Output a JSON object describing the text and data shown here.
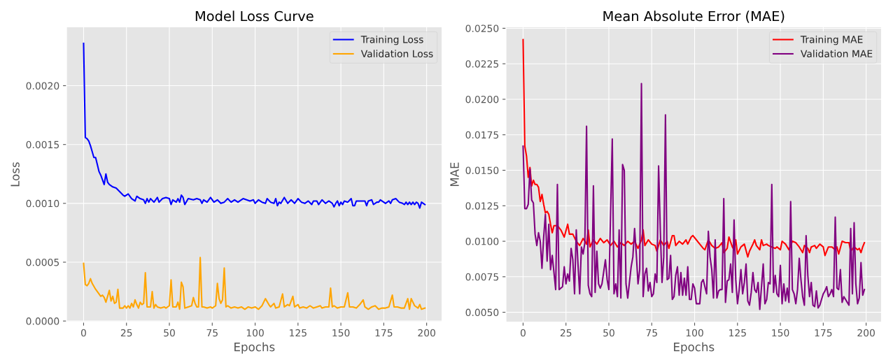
{
  "chart_data": [
    {
      "type": "line",
      "title": "Model Loss Curve",
      "xlabel": "Epochs",
      "ylabel": "Loss",
      "xlim": [
        -10,
        209
      ],
      "xticks": [
        0,
        25,
        50,
        75,
        100,
        125,
        150,
        175,
        200
      ],
      "ylim": [
        -1e-05,
        0.0025
      ],
      "yticks": [
        {
          "value": 0,
          "label": "0.0000"
        },
        {
          "value": 0.0005,
          "label": "0.0005"
        },
        {
          "value": 0.001,
          "label": "0.0010"
        },
        {
          "value": 0.0015,
          "label": "0.0015"
        },
        {
          "value": 0.002,
          "label": "0.0020"
        }
      ],
      "grid": true,
      "legend": "top right",
      "series": [
        {
          "name": "Training Loss",
          "color": "#0000ff",
          "x": [
            0,
            1,
            2,
            3,
            4,
            5,
            6,
            7,
            8,
            9,
            10,
            11,
            12,
            13,
            14,
            15,
            17,
            19,
            21,
            23,
            24,
            26,
            28,
            30,
            31,
            33,
            35,
            36,
            37,
            38,
            39,
            41,
            42,
            43,
            44,
            46,
            48,
            50,
            51,
            52,
            54,
            55,
            56,
            57,
            58,
            59,
            61,
            64,
            66,
            68,
            69,
            70,
            72,
            74,
            76,
            78,
            80,
            82,
            84,
            86,
            88,
            90,
            91,
            93,
            95,
            97,
            99,
            100,
            102,
            104,
            106,
            107,
            109,
            111,
            112,
            113,
            114,
            115,
            117,
            119,
            121,
            123,
            125,
            127,
            129,
            131,
            133,
            134,
            136,
            137,
            139,
            141,
            143,
            145,
            146,
            147,
            148,
            149,
            150,
            151,
            152,
            154,
            156,
            157,
            158,
            159,
            161,
            164,
            165,
            166,
            168,
            169,
            171,
            172,
            173,
            175,
            176,
            178,
            179,
            180,
            182,
            184,
            186,
            187,
            188,
            189,
            190,
            191,
            192,
            193,
            194,
            195,
            196,
            197,
            198,
            199
          ],
          "values": [
            0.00236,
            0.00156,
            0.00155,
            0.00153,
            0.00149,
            0.00144,
            0.00139,
            0.00139,
            0.00133,
            0.00127,
            0.00124,
            0.0012,
            0.00116,
            0.00125,
            0.00118,
            0.00116,
            0.00114,
            0.00113,
            0.0011,
            0.00107,
            0.00106,
            0.00108,
            0.00104,
            0.00102,
            0.00106,
            0.00104,
            0.00103,
            0.001,
            0.00104,
            0.00101,
            0.00104,
            0.00101,
            0.00103,
            0.00105,
            0.00101,
            0.00104,
            0.00105,
            0.00104,
            0.00099,
            0.00103,
            0.00101,
            0.00104,
            0.00101,
            0.00107,
            0.00105,
            0.00099,
            0.00104,
            0.00103,
            0.00104,
            0.00103,
            0.001,
            0.00103,
            0.00101,
            0.00105,
            0.00101,
            0.00103,
            0.001,
            0.00101,
            0.00104,
            0.00101,
            0.00103,
            0.00101,
            0.00102,
            0.00104,
            0.00103,
            0.00102,
            0.00103,
            0.001,
            0.00103,
            0.00101,
            0.001,
            0.00104,
            0.00101,
            0.001,
            0.00104,
            0.00098,
            0.00101,
            0.001,
            0.00105,
            0.001,
            0.00103,
            0.001,
            0.00104,
            0.00101,
            0.001,
            0.00102,
            0.00099,
            0.00102,
            0.00102,
            0.00099,
            0.00103,
            0.001,
            0.00102,
            0.001,
            0.00097,
            0.001,
            0.00102,
            0.00098,
            0.00101,
            0.00099,
            0.00102,
            0.00101,
            0.00104,
            0.00098,
            0.00098,
            0.00102,
            0.00102,
            0.00102,
            0.00098,
            0.00102,
            0.00103,
            0.00099,
            0.00101,
            0.00101,
            0.00103,
            0.00101,
            0.001,
            0.00102,
            0.001,
            0.00103,
            0.00104,
            0.00101,
            0.001,
            0.00099,
            0.00101,
            0.00099,
            0.00101,
            0.00099,
            0.00101,
            0.00099,
            0.00101,
            0.001,
            0.00096,
            0.00101,
            0.001,
            0.00099
          ]
        },
        {
          "name": "Validation Loss",
          "color": "#ffa500",
          "x": [
            0,
            1,
            2,
            3,
            4,
            5,
            7,
            9,
            10,
            11,
            12,
            13,
            15,
            16,
            17,
            18,
            19,
            20,
            21,
            23,
            24,
            25,
            26,
            27,
            28,
            29,
            30,
            31,
            32,
            33,
            34,
            35,
            36,
            37,
            39,
            40,
            41,
            42,
            43,
            45,
            47,
            48,
            50,
            51,
            52,
            54,
            55,
            56,
            57,
            58,
            59,
            61,
            63,
            64,
            65,
            66,
            67,
            68,
            69,
            70,
            72,
            74,
            75,
            77,
            78,
            79,
            80,
            81,
            82,
            83,
            84,
            86,
            88,
            90,
            92,
            94,
            96,
            98,
            100,
            102,
            104,
            106,
            108,
            109,
            111,
            112,
            114,
            116,
            117,
            119,
            120,
            122,
            123,
            125,
            126,
            128,
            130,
            132,
            134,
            136,
            138,
            139,
            141,
            143,
            144,
            145,
            146,
            148,
            150,
            152,
            154,
            155,
            157,
            159,
            161,
            163,
            164,
            166,
            168,
            170,
            172,
            174,
            176,
            178,
            180,
            181,
            183,
            185,
            187,
            189,
            190,
            191,
            193,
            195,
            196,
            197,
            199
          ],
          "values": [
            0.00049,
            0.00031,
            0.0003,
            0.00032,
            0.00036,
            0.00032,
            0.00027,
            0.00023,
            0.00021,
            0.00022,
            0.0002,
            0.00016,
            0.00026,
            0.00017,
            0.00021,
            0.00015,
            0.00016,
            0.00027,
            0.00011,
            0.00011,
            0.00013,
            0.00011,
            0.00013,
            0.00011,
            0.00015,
            0.00012,
            0.00018,
            0.00014,
            0.00011,
            0.00016,
            0.00014,
            0.00015,
            0.00041,
            0.00012,
            0.00012,
            0.00025,
            0.00011,
            0.00014,
            0.00012,
            0.00011,
            0.00012,
            0.00011,
            0.00013,
            0.00035,
            0.00012,
            0.00012,
            0.00016,
            0.0001,
            0.00033,
            0.00029,
            0.00011,
            0.00012,
            0.00013,
            0.0002,
            0.00015,
            0.00012,
            0.00012,
            0.00054,
            0.00012,
            0.00012,
            0.00011,
            0.00012,
            0.00011,
            0.00013,
            0.00032,
            0.00019,
            0.00015,
            0.00018,
            0.00045,
            0.00012,
            0.00013,
            0.00011,
            0.00012,
            0.00011,
            0.00012,
            0.0001,
            0.00012,
            0.00011,
            0.00012,
            0.0001,
            0.00013,
            0.00019,
            0.00014,
            0.00012,
            0.00015,
            0.00011,
            0.00012,
            0.00023,
            0.00012,
            0.00014,
            0.00013,
            0.00021,
            0.00012,
            0.00014,
            0.00011,
            0.00012,
            0.00011,
            0.00013,
            0.00011,
            0.00012,
            0.00013,
            0.00011,
            0.00012,
            0.00012,
            0.00028,
            0.00012,
            0.00013,
            0.00011,
            0.00012,
            0.00012,
            0.00024,
            0.00012,
            0.00012,
            0.00011,
            0.00014,
            0.00018,
            0.00012,
            0.0001,
            0.00012,
            0.00013,
            0.0001,
            0.00011,
            0.00011,
            0.00012,
            0.00022,
            0.00012,
            0.00012,
            0.00011,
            0.00011,
            0.00019,
            0.0001,
            0.00019,
            0.00013,
            0.00011,
            0.00014,
            0.0001,
            0.00011
          ]
        }
      ]
    },
    {
      "type": "line",
      "title": "Mean Absolute Error (MAE)",
      "xlabel": "Epochs",
      "ylabel": "MAE",
      "xlim": [
        -10,
        209
      ],
      "xticks": [
        0,
        25,
        50,
        75,
        100,
        125,
        150,
        175,
        200
      ],
      "ylim": [
        0.0043,
        0.0251
      ],
      "yticks": [
        {
          "value": 0.005,
          "label": "0.0050"
        },
        {
          "value": 0.0075,
          "label": "0.0075"
        },
        {
          "value": 0.01,
          "label": "0.0100"
        },
        {
          "value": 0.0125,
          "label": "0.0125"
        },
        {
          "value": 0.015,
          "label": "0.0150"
        },
        {
          "value": 0.0175,
          "label": "0.0175"
        },
        {
          "value": 0.02,
          "label": "0.0200"
        },
        {
          "value": 0.0225,
          "label": "0.0225"
        },
        {
          "value": 0.025,
          "label": "0.0250"
        }
      ],
      "grid": true,
      "legend": "top right",
      "series": [
        {
          "name": "Training MAE",
          "color": "#ff0000",
          "x": [
            0,
            1,
            2,
            3,
            4,
            5,
            6,
            7,
            8,
            9,
            10,
            11,
            12,
            13,
            14,
            15,
            16,
            17,
            18,
            20,
            22,
            24,
            26,
            27,
            29,
            31,
            33,
            35,
            37,
            38,
            39,
            41,
            43,
            45,
            47,
            49,
            51,
            53,
            55,
            57,
            59,
            61,
            63,
            65,
            67,
            69,
            70,
            71,
            73,
            75,
            77,
            78,
            80,
            82,
            84,
            85,
            87,
            88,
            89,
            91,
            93,
            95,
            96,
            98,
            99,
            101,
            103,
            105,
            106,
            108,
            110,
            112,
            114,
            116,
            117,
            119,
            120,
            122,
            123,
            124,
            125,
            127,
            129,
            131,
            132,
            134,
            135,
            136,
            138,
            139,
            140,
            142,
            143,
            145,
            147,
            148,
            150,
            151,
            153,
            155,
            157,
            159,
            161,
            163,
            164,
            166,
            167,
            168,
            170,
            171,
            173,
            175,
            176,
            178,
            180,
            182,
            183,
            184,
            186,
            188,
            190,
            191,
            193,
            195,
            196,
            197,
            198,
            199
          ],
          "values": [
            0.0242,
            0.0167,
            0.016,
            0.0145,
            0.0152,
            0.0139,
            0.0143,
            0.014,
            0.014,
            0.0138,
            0.0128,
            0.0133,
            0.0126,
            0.012,
            0.0121,
            0.0119,
            0.0112,
            0.0106,
            0.0111,
            0.0111,
            0.0108,
            0.0103,
            0.0112,
            0.0105,
            0.0105,
            0.01,
            0.0097,
            0.0102,
            0.0098,
            0.0108,
            0.0096,
            0.0101,
            0.0098,
            0.0102,
            0.0099,
            0.0101,
            0.0097,
            0.01,
            0.0096,
            0.0099,
            0.0097,
            0.01,
            0.0098,
            0.01,
            0.0095,
            0.0101,
            0.0108,
            0.0097,
            0.0101,
            0.0098,
            0.0097,
            0.0093,
            0.0101,
            0.0097,
            0.01,
            0.0095,
            0.0104,
            0.0104,
            0.0097,
            0.01,
            0.0098,
            0.0101,
            0.0098,
            0.0103,
            0.0104,
            0.0101,
            0.0098,
            0.0095,
            0.0094,
            0.0101,
            0.0097,
            0.0095,
            0.0096,
            0.0099,
            0.0092,
            0.0095,
            0.0103,
            0.0096,
            0.0094,
            0.0101,
            0.0091,
            0.0096,
            0.0098,
            0.0089,
            0.0093,
            0.0098,
            0.0101,
            0.0097,
            0.0094,
            0.0101,
            0.0097,
            0.0098,
            0.0097,
            0.0096,
            0.0095,
            0.0096,
            0.0094,
            0.01,
            0.0098,
            0.0094,
            0.01,
            0.0099,
            0.0096,
            0.0092,
            0.0097,
            0.0095,
            0.0092,
            0.0096,
            0.0097,
            0.0095,
            0.0098,
            0.0096,
            0.009,
            0.0096,
            0.0096,
            0.0094,
            0.0096,
            0.0091,
            0.01,
            0.0099,
            0.0099,
            0.0093,
            0.0096,
            0.0094,
            0.0095,
            0.0092,
            0.0096,
            0.0099
          ]
        },
        {
          "name": "Validation MAE",
          "color": "#800080",
          "x": [
            0,
            1,
            2,
            3,
            4,
            5,
            6,
            7,
            8,
            9,
            10,
            11,
            12,
            13,
            14,
            15,
            16,
            17,
            19,
            20,
            21,
            23,
            24,
            25,
            26,
            27,
            28,
            29,
            30,
            31,
            32,
            33,
            34,
            35,
            36,
            37,
            38,
            39,
            40,
            41,
            42,
            43,
            44,
            45,
            46,
            48,
            49,
            50,
            52,
            53,
            54,
            55,
            56,
            57,
            58,
            59,
            60,
            61,
            62,
            63,
            64,
            65,
            66,
            67,
            68,
            69,
            70,
            71,
            72,
            73,
            74,
            75,
            76,
            77,
            78,
            79,
            80,
            81,
            82,
            83,
            84,
            85,
            86,
            87,
            88,
            89,
            90,
            91,
            92,
            93,
            94,
            95,
            96,
            97,
            98,
            99,
            100,
            101,
            103,
            104,
            105,
            107,
            108,
            109,
            110,
            111,
            112,
            113,
            114,
            115,
            116,
            117,
            118,
            119,
            120,
            121,
            122,
            123,
            124,
            125,
            126,
            127,
            128,
            129,
            130,
            131,
            132,
            133,
            134,
            135,
            136,
            137,
            138,
            139,
            140,
            141,
            142,
            143,
            144,
            145,
            146,
            147,
            148,
            149,
            150,
            151,
            152,
            153,
            154,
            155,
            156,
            157,
            158,
            159,
            160,
            161,
            162,
            163,
            164,
            165,
            166,
            167,
            168,
            169,
            170,
            171,
            172,
            173,
            174,
            175,
            176,
            177,
            178,
            179,
            180,
            181,
            182,
            183,
            184,
            185,
            186,
            187,
            188,
            189,
            190,
            191,
            192,
            193,
            194,
            195,
            196,
            197,
            198,
            199
          ],
          "values": [
            0.0167,
            0.0123,
            0.0123,
            0.0126,
            0.0151,
            0.0129,
            0.0127,
            0.0105,
            0.0097,
            0.0106,
            0.01,
            0.0081,
            0.0103,
            0.0119,
            0.0086,
            0.0112,
            0.008,
            0.009,
            0.0066,
            0.014,
            0.0066,
            0.0068,
            0.0082,
            0.007,
            0.0077,
            0.0072,
            0.0095,
            0.0087,
            0.0063,
            0.0108,
            0.0084,
            0.0063,
            0.0096,
            0.0091,
            0.0099,
            0.0181,
            0.0069,
            0.0063,
            0.0061,
            0.0139,
            0.0064,
            0.0093,
            0.007,
            0.0067,
            0.007,
            0.0087,
            0.0073,
            0.0066,
            0.0172,
            0.0063,
            0.007,
            0.0061,
            0.0108,
            0.006,
            0.0154,
            0.015,
            0.007,
            0.006,
            0.0071,
            0.0082,
            0.0089,
            0.0109,
            0.0091,
            0.007,
            0.008,
            0.0211,
            0.0061,
            0.0077,
            0.0081,
            0.0065,
            0.0071,
            0.0061,
            0.0063,
            0.0077,
            0.0071,
            0.0153,
            0.0108,
            0.0071,
            0.0089,
            0.0189,
            0.0073,
            0.0074,
            0.009,
            0.0059,
            0.0061,
            0.0076,
            0.0082,
            0.0062,
            0.0078,
            0.0062,
            0.0074,
            0.0062,
            0.0082,
            0.0059,
            0.0059,
            0.007,
            0.0067,
            0.0056,
            0.0056,
            0.0071,
            0.0073,
            0.0063,
            0.0107,
            0.0089,
            0.008,
            0.006,
            0.0101,
            0.006,
            0.0065,
            0.0066,
            0.0066,
            0.013,
            0.0057,
            0.0072,
            0.0073,
            0.0084,
            0.0064,
            0.0115,
            0.0073,
            0.0056,
            0.0066,
            0.008,
            0.0063,
            0.0071,
            0.0084,
            0.0058,
            0.0055,
            0.0064,
            0.0078,
            0.0066,
            0.0064,
            0.0071,
            0.0052,
            0.0068,
            0.0084,
            0.0056,
            0.0059,
            0.0071,
            0.007,
            0.014,
            0.0064,
            0.0076,
            0.0063,
            0.0061,
            0.0083,
            0.0056,
            0.007,
            0.0058,
            0.0067,
            0.0057,
            0.0128,
            0.0066,
            0.0063,
            0.0056,
            0.0066,
            0.0088,
            0.0073,
            0.0061,
            0.0055,
            0.0104,
            0.0076,
            0.0061,
            0.0071,
            0.0055,
            0.0054,
            0.0065,
            0.0053,
            0.0055,
            0.0059,
            0.0063,
            0.0065,
            0.0068,
            0.0061,
            0.0063,
            0.0066,
            0.0061,
            0.0117,
            0.0067,
            0.0066,
            0.008,
            0.0057,
            0.0061,
            0.0059,
            0.0057,
            0.0055,
            0.0109,
            0.0063,
            0.0113,
            0.007,
            0.0056,
            0.006,
            0.0085,
            0.0062,
            0.0066
          ]
        }
      ]
    }
  ]
}
